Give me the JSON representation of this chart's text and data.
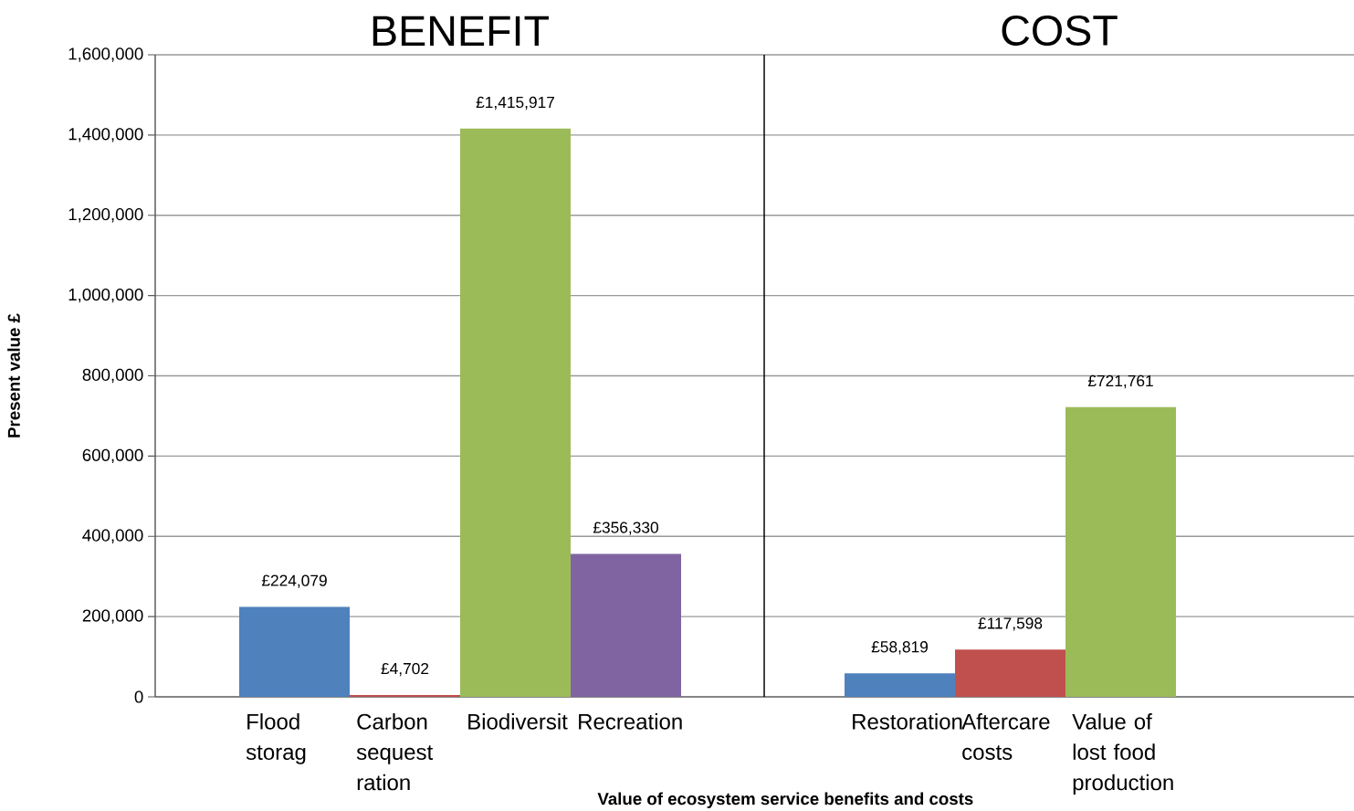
{
  "chart_data": [
    {
      "type": "bar",
      "title": "BENEFIT",
      "xlabel": "Value of ecosystem service benefits and costs",
      "ylabel": "Present value £",
      "categories": [
        "Flood storag",
        "Carbon sequest ration",
        "Biodiversit",
        "Recreation"
      ],
      "values": [
        224079,
        4702,
        1415917,
        356330
      ],
      "colors": [
        "#4f81bd",
        "#c0504d",
        "#9bbb59",
        "#8064a2"
      ],
      "value_labels": [
        "£224,079",
        "£4,702",
        "£1,415,917",
        "£356,330"
      ],
      "ylim": [
        0,
        1600000
      ],
      "yticks": [
        {
          "value": 0,
          "label": "0"
        },
        {
          "value": 200000,
          "label": "200,000"
        },
        {
          "value": 400000,
          "label": "400,000"
        },
        {
          "value": 600000,
          "label": "600,000"
        },
        {
          "value": 800000,
          "label": "800,000"
        },
        {
          "value": 1000000,
          "label": "1,000,000"
        },
        {
          "value": 1200000,
          "label": "1,200,000"
        },
        {
          "value": 1400000,
          "label": "1,400,000"
        },
        {
          "value": 1600000,
          "label": "1,600,000"
        }
      ],
      "grid": "y"
    },
    {
      "type": "bar",
      "title": "COST",
      "categories": [
        "Restoration",
        "Aftercare costs",
        "Value of lost food production"
      ],
      "values": [
        58819,
        117598,
        721761
      ],
      "colors": [
        "#4f81bd",
        "#c0504d",
        "#9bbb59"
      ],
      "value_labels": [
        "£58,819",
        "£117,598",
        "£721,761"
      ],
      "ylim": [
        0,
        1600000
      ],
      "yticks": [
        0,
        200000,
        400000,
        600000,
        800000,
        1000000,
        1200000,
        1400000,
        1600000
      ],
      "tick_labels": "x",
      "grid": "y"
    }
  ]
}
